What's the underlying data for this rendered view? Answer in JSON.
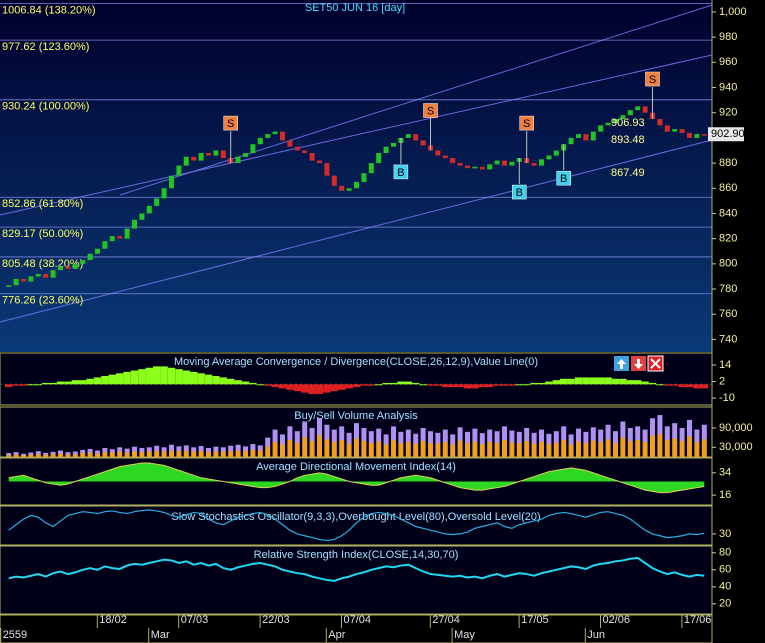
{
  "chart_data": [
    {
      "type": "candlestick",
      "title": "SET50 JUN 16  [day]",
      "categories": [
        null,
        null,
        null,
        null,
        null,
        null,
        null,
        null,
        null,
        null,
        null,
        null,
        null,
        null,
        "18/02",
        null,
        null,
        null,
        null,
        null,
        null,
        null,
        null,
        null,
        null,
        "07/03",
        null,
        null,
        null,
        null,
        null,
        null,
        null,
        null,
        null,
        null,
        "22/03",
        null,
        null,
        null,
        null,
        null,
        null,
        null,
        null,
        null,
        null,
        "07/04",
        null,
        null,
        null,
        null,
        null,
        null,
        null,
        null,
        null,
        null,
        null,
        "27/04",
        null,
        null,
        null,
        null,
        null,
        null,
        null,
        null,
        null,
        null,
        null,
        "17/05",
        null,
        null,
        null,
        null,
        null,
        null,
        null,
        null,
        null,
        null,
        "02/06",
        null,
        null,
        null,
        null,
        null,
        null,
        null,
        null,
        null,
        null,
        "17/06",
        null
      ],
      "months": [
        "2559",
        null,
        null,
        null,
        null,
        null,
        null,
        null,
        null,
        null,
        null,
        null,
        null,
        null,
        null,
        null,
        null,
        null,
        null,
        null,
        "Mar",
        null,
        null,
        null,
        null,
        null,
        null,
        null,
        null,
        null,
        null,
        null,
        null,
        null,
        null,
        null,
        null,
        null,
        null,
        null,
        null,
        null,
        null,
        null,
        "Apr",
        null,
        null,
        null,
        null,
        null,
        null,
        null,
        null,
        null,
        null,
        null,
        null,
        null,
        null,
        null,
        null,
        "May",
        null,
        null,
        null,
        null,
        null,
        null,
        null,
        null,
        null,
        null,
        null,
        null,
        null,
        null,
        null,
        null,
        null,
        "Jun",
        null,
        null,
        null,
        null,
        null,
        null,
        null,
        null,
        null,
        null,
        null,
        null,
        null,
        null,
        null
      ],
      "values": [
        783,
        788,
        786,
        790,
        792,
        789,
        795,
        798,
        796,
        800,
        803,
        808,
        812,
        818,
        822,
        820,
        828,
        835,
        840,
        846,
        852,
        860,
        870,
        878,
        885,
        882,
        888,
        886,
        890,
        884,
        880,
        885,
        888,
        895,
        900,
        903,
        905,
        898,
        893,
        890,
        888,
        882,
        880,
        870,
        862,
        858,
        860,
        865,
        872,
        880,
        888,
        893,
        896,
        900,
        903,
        898,
        894,
        890,
        886,
        884,
        880,
        878,
        876,
        877,
        875,
        879,
        882,
        878,
        881,
        884,
        880,
        878,
        883,
        886,
        890,
        895,
        900,
        903,
        898,
        905,
        910,
        912,
        915,
        918,
        922,
        925,
        920,
        915,
        910,
        905,
        907,
        904,
        900,
        903,
        902.9
      ],
      "ylim": [
        730,
        1009.5
      ],
      "yticks": [
        740,
        760,
        780,
        800,
        820,
        840,
        860,
        880,
        900,
        920,
        940,
        960,
        980,
        {
          "value": 1000,
          "label": "1,000"
        }
      ],
      "levels": [
        {
          "value": 1006.84,
          "label": "1006.84 (138.20%)"
        },
        {
          "value": 977.62,
          "label": "977.62 (123.60%)"
        },
        {
          "value": 930.24,
          "label": "930.24 (100.00%)"
        },
        {
          "value": 852.86,
          "label": "852.86 (61.80%)"
        },
        {
          "value": 829.17,
          "label": "829.17 (50.00%)"
        },
        {
          "value": 805.48,
          "label": "805.48 (38.20%)"
        },
        {
          "value": 776.26,
          "label": "776.26 (23.60%)"
        }
      ],
      "annotations": [
        906.93,
        893.48,
        867.49
      ],
      "last": {
        "value": 902.9,
        "label": "902.90"
      },
      "signals": [
        {
          "at": 30,
          "label": "S"
        },
        {
          "at": 57,
          "label": "S"
        },
        {
          "at": 70,
          "label": "S"
        },
        {
          "at": 87,
          "label": "S"
        },
        {
          "at": 53,
          "label": "B"
        },
        {
          "at": 69,
          "label": "B"
        },
        {
          "at": 75,
          "label": "B"
        }
      ],
      "colors": {
        "up": "#22c422",
        "down": "#d62a2a"
      }
    },
    {
      "type": "histogram",
      "title": "Moving Average Convergence / Divergence(CLOSE,26,12,9),Value Line(0)",
      "values": [
        -2,
        -1,
        -1,
        0,
        0,
        1,
        1,
        2,
        2,
        3,
        3,
        4,
        5,
        6,
        7,
        8,
        9,
        10,
        11,
        12,
        13,
        13,
        12,
        11,
        10,
        9,
        8,
        7,
        6,
        5,
        4,
        3,
        2,
        1,
        0,
        -1,
        -2,
        -3,
        -4,
        -5,
        -6,
        -7,
        -7,
        -6,
        -5,
        -4,
        -3,
        -2,
        -1,
        -1,
        0,
        1,
        1,
        2,
        2,
        1,
        0,
        -1,
        -1,
        -2,
        -2,
        -2,
        -3,
        -3,
        -2,
        -2,
        -1,
        -1,
        -1,
        0,
        0,
        1,
        1,
        2,
        3,
        4,
        4,
        5,
        5,
        5,
        5,
        5,
        4,
        4,
        3,
        3,
        2,
        1,
        0,
        -1,
        -1,
        -2,
        -2,
        -3,
        -3
      ],
      "ylim": [
        -15,
        22.7
      ],
      "yticks": [
        14,
        2,
        -10
      ],
      "colors": {
        "up": "#8cff1a",
        "down": "#e02020"
      }
    },
    {
      "type": "volume",
      "title": "Buy/Sell Volume Analysis",
      "values": [
        12000,
        15000,
        10000,
        14000,
        18000,
        13000,
        16000,
        20000,
        15000,
        17000,
        22000,
        25000,
        20000,
        28000,
        24000,
        30000,
        26000,
        32000,
        28000,
        30000,
        35000,
        30000,
        38000,
        33000,
        36000,
        30000,
        34000,
        28000,
        32000,
        30000,
        35000,
        38000,
        33000,
        40000,
        36000,
        60000,
        85000,
        70000,
        95000,
        80000,
        110000,
        90000,
        120000,
        100000,
        85000,
        95000,
        75000,
        105000,
        90000,
        80000,
        88000,
        70000,
        95000,
        78000,
        85000,
        72000,
        90000,
        80000,
        75000,
        85000,
        70000,
        92000,
        78000,
        88000,
        74000,
        85000,
        80000,
        95000,
        82000,
        78000,
        90000,
        75000,
        85000,
        72000,
        80000,
        95000,
        70000,
        88000,
        78000,
        92000,
        85000,
        100000,
        80000,
        110000,
        90000,
        95000,
        85000,
        120000,
        130000,
        95000,
        105000,
        90000,
        115000,
        85000,
        100000
      ],
      "ylim": [
        0,
        155000
      ],
      "yticks": [
        {
          "value": 90000,
          "label": "90,000"
        },
        {
          "value": 30000,
          "label": "30,000"
        }
      ],
      "colors": {
        "buy": "#f0a020",
        "sell": "#b090f0"
      }
    },
    {
      "type": "area",
      "title": "Average Directional Movement Index(14)",
      "values": [
        30,
        31,
        32,
        30,
        28,
        26,
        25,
        24,
        25,
        27,
        29,
        31,
        33,
        35,
        37,
        39,
        40,
        41,
        42,
        42,
        41,
        40,
        38,
        36,
        34,
        32,
        30,
        29,
        28,
        27,
        26,
        25,
        24,
        23,
        22,
        22,
        23,
        25,
        27,
        30,
        32,
        33,
        34,
        33,
        31,
        29,
        27,
        26,
        25,
        24,
        24,
        26,
        28,
        30,
        31,
        32,
        31,
        30,
        28,
        26,
        24,
        22,
        21,
        20,
        20,
        21,
        22,
        23,
        25,
        27,
        29,
        31,
        33,
        35,
        36,
        37,
        38,
        37,
        36,
        34,
        32,
        30,
        28,
        26,
        24,
        22,
        20,
        19,
        18,
        18,
        19,
        20,
        21,
        22,
        23
      ],
      "ylim": [
        8,
        46
      ],
      "yticks": [
        34,
        16
      ],
      "color": "#33ee22"
    },
    {
      "type": "line",
      "title": "Slow Stochastics Oscillator(9,3,3),Overbought Level(80),Oversold Level(20)",
      "values": [
        40,
        55,
        70,
        80,
        75,
        60,
        50,
        65,
        80,
        85,
        90,
        88,
        85,
        90,
        92,
        88,
        85,
        90,
        93,
        95,
        92,
        88,
        80,
        75,
        82,
        88,
        85,
        70,
        60,
        55,
        65,
        75,
        80,
        85,
        88,
        82,
        70,
        55,
        40,
        30,
        25,
        20,
        15,
        12,
        15,
        25,
        40,
        60,
        75,
        85,
        88,
        85,
        80,
        70,
        60,
        50,
        45,
        40,
        35,
        30,
        28,
        30,
        35,
        45,
        50,
        55,
        60,
        50,
        45,
        55,
        60,
        65,
        70,
        80,
        85,
        88,
        85,
        80,
        75,
        82,
        88,
        90,
        85,
        80,
        70,
        55,
        40,
        30,
        25,
        20,
        22,
        25,
        30,
        28,
        32
      ],
      "ylim": [
        0,
        100
      ],
      "yticks": [
        30
      ],
      "color": "#2ab0e0"
    },
    {
      "type": "line",
      "title": "Relative Strength Index(CLOSE,14,30,70)",
      "values": [
        50,
        52,
        51,
        53,
        55,
        52,
        56,
        58,
        55,
        57,
        60,
        62,
        60,
        64,
        62,
        61,
        65,
        67,
        66,
        68,
        70,
        72,
        71,
        68,
        70,
        66,
        68,
        65,
        67,
        62,
        60,
        63,
        65,
        67,
        68,
        66,
        64,
        60,
        58,
        56,
        55,
        52,
        50,
        48,
        47,
        50,
        52,
        55,
        57,
        60,
        62,
        64,
        63,
        65,
        66,
        62,
        58,
        55,
        54,
        53,
        52,
        53,
        51,
        52,
        50,
        53,
        55,
        52,
        54,
        56,
        55,
        53,
        56,
        58,
        60,
        62,
        64,
        63,
        61,
        65,
        67,
        68,
        70,
        71,
        73,
        74,
        68,
        62,
        58,
        55,
        57,
        54,
        52,
        54,
        53
      ],
      "ylim": [
        8,
        88
      ],
      "yticks": [
        80,
        60,
        40,
        20
      ],
      "color": "#20d8f0"
    }
  ]
}
